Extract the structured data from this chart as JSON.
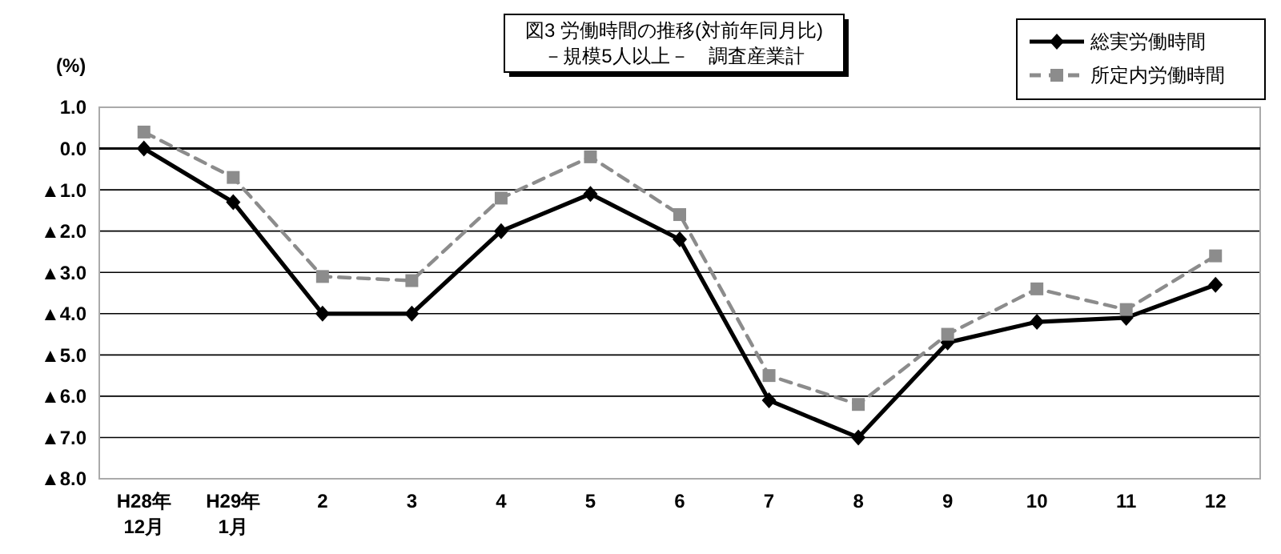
{
  "chart_data": {
    "type": "line",
    "title": "図3  労働時間の推移(対前年同月比)\n－規模5人以上－　調査産業計",
    "ylabel": "(%)",
    "categories": [
      "H28年\n12月",
      "H29年\n1月",
      "2",
      "3",
      "4",
      "5",
      "6",
      "7",
      "8",
      "9",
      "10",
      "11",
      "12"
    ],
    "series": [
      {
        "name": "総実労働時間",
        "color": "#000000",
        "marker": "diamond",
        "line_style": "solid",
        "values": [
          0.0,
          -1.3,
          -4.0,
          -4.0,
          -2.0,
          -1.1,
          -2.2,
          -6.1,
          -7.0,
          -4.7,
          -4.2,
          -4.1,
          -3.3
        ]
      },
      {
        "name": "所定内労働時間",
        "color": "#8c8c8c",
        "marker": "square",
        "line_style": "dashed",
        "values": [
          0.4,
          -0.7,
          -3.1,
          -3.2,
          -1.2,
          -0.2,
          -1.6,
          -5.5,
          -6.2,
          -4.5,
          -3.4,
          -3.9,
          -2.6
        ]
      }
    ],
    "ylim": [
      -8,
      1
    ],
    "yticks": [
      {
        "value": 1,
        "label": "1.0"
      },
      {
        "value": 0,
        "label": "0.0"
      },
      {
        "value": -1,
        "label": "▲1.0"
      },
      {
        "value": -2,
        "label": "▲2.0"
      },
      {
        "value": -3,
        "label": "▲3.0"
      },
      {
        "value": -4,
        "label": "▲4.0"
      },
      {
        "value": -5,
        "label": "▲5.0"
      },
      {
        "value": -6,
        "label": "▲6.0"
      },
      {
        "value": -7,
        "label": "▲7.0"
      },
      {
        "value": -8,
        "label": "▲8.0"
      }
    ],
    "grid": "y",
    "legend": "top right"
  }
}
